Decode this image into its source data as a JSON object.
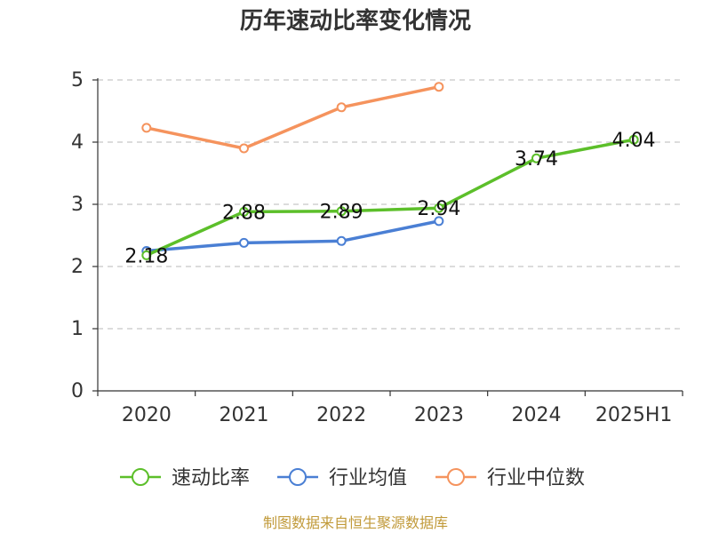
{
  "title": "历年速动比率变化情况",
  "source": "制图数据来自恒生聚源数据库",
  "chart_data": {
    "type": "line",
    "title": "历年速动比率变化情况",
    "xlabel": "",
    "ylabel": "",
    "categories": [
      "2020",
      "2021",
      "2022",
      "2023",
      "2024",
      "2025H1"
    ],
    "y_ticks": [
      "0",
      "1",
      "2",
      "3",
      "4",
      "5"
    ],
    "ylim": [
      0,
      5
    ],
    "grid": "horizontal dashed",
    "legend_position": "bottom",
    "series": [
      {
        "name": "速动比率",
        "color": "#5cbf2a",
        "values": [
          2.18,
          2.88,
          2.89,
          2.94,
          3.74,
          4.04
        ],
        "labels": [
          "2.18",
          "2.88",
          "2.89",
          "2.94",
          "3.74",
          "4.04"
        ]
      },
      {
        "name": "行业均值",
        "color": "#4a7fd4",
        "values": [
          2.25,
          2.38,
          2.41,
          2.73,
          null,
          null
        ]
      },
      {
        "name": "行业中位数",
        "color": "#f5935d",
        "values": [
          4.23,
          3.9,
          4.56,
          4.89,
          null,
          null
        ]
      }
    ]
  }
}
